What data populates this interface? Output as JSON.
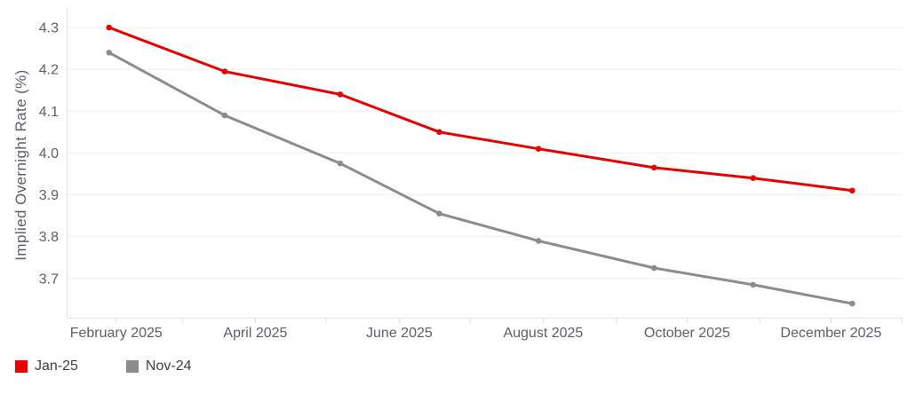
{
  "chart_data": {
    "type": "line",
    "title": "",
    "ylabel": "Implied Overnight Rate (%)",
    "x_axis": {
      "tick_labels": [
        {
          "label": "February 2025",
          "day": 32
        },
        {
          "label": "April 2025",
          "day": 91
        },
        {
          "label": "June 2025",
          "day": 152
        },
        {
          "label": "August 2025",
          "day": 213
        },
        {
          "label": "October 2025",
          "day": 274
        },
        {
          "label": "December 2025",
          "day": 335
        }
      ],
      "minor_tick_days": [
        32,
        60,
        91,
        121,
        152,
        182,
        213,
        244,
        274,
        305,
        335,
        365
      ],
      "domain_days": [
        11,
        365
      ],
      "domain_note": "time axis spans mid-January 2025 to end of December 2025"
    },
    "y_axis": {
      "ticks": [
        4.3,
        4.2,
        4.1,
        4.0,
        3.9,
        3.8,
        3.7
      ],
      "range_shown": [
        3.6,
        4.33
      ],
      "grid": true
    },
    "series": [
      {
        "name": "Jan-25",
        "color": "#e60000",
        "x_dates_est": [
          "2025-01-29",
          "2025-03-19",
          "2025-05-07",
          "2025-06-18",
          "2025-07-30",
          "2025-09-17",
          "2025-10-29",
          "2025-12-10"
        ],
        "x_days": [
          29,
          78,
          127,
          169,
          211,
          260,
          302,
          344
        ],
        "values": [
          4.3,
          4.195,
          4.14,
          4.05,
          4.01,
          3.965,
          3.94,
          3.91
        ]
      },
      {
        "name": "Nov-24",
        "color": "#8c8c8c",
        "x_dates_est": [
          "2025-01-29",
          "2025-03-19",
          "2025-05-07",
          "2025-06-18",
          "2025-07-30",
          "2025-09-17",
          "2025-10-29",
          "2025-12-10"
        ],
        "x_days": [
          29,
          78,
          127,
          169,
          211,
          260,
          302,
          344
        ],
        "values": [
          4.24,
          4.09,
          3.975,
          3.855,
          3.79,
          3.725,
          3.685,
          3.64
        ]
      }
    ],
    "legend": {
      "position": "bottom-left",
      "items": [
        "Jan-25",
        "Nov-24"
      ]
    }
  },
  "colors": {
    "series_red": "#e60000",
    "series_gray": "#8c8c8c",
    "gridline": "#ededed",
    "axis_line": "#e3e3e3",
    "tick_mark": "#d8d8d8",
    "tick_text": "#5b6066",
    "legend_text": "#3d3f42",
    "background": "#ffffff"
  }
}
